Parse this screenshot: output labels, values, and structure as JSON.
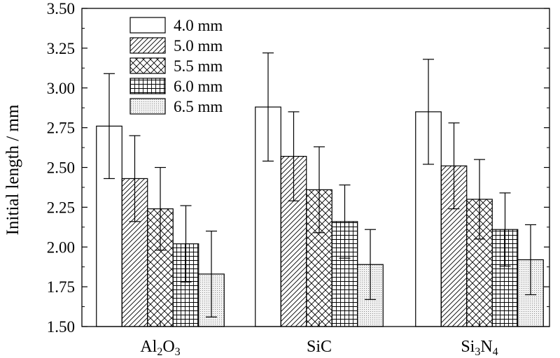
{
  "chart_data": {
    "type": "bar",
    "title": "",
    "xlabel": "",
    "ylabel": "Initial length / mm",
    "ylim": [
      1.5,
      3.5
    ],
    "yticks": [
      "1.50",
      "1.75",
      "2.00",
      "2.25",
      "2.50",
      "2.75",
      "3.00",
      "3.25",
      "3.50"
    ],
    "categories": [
      {
        "base": "Al",
        "sub1": "2",
        "mid": "O",
        "sub2": "3"
      },
      {
        "base": "SiC",
        "sub1": "",
        "mid": "",
        "sub2": ""
      },
      {
        "base": "Si",
        "sub1": "3",
        "mid": "N",
        "sub2": "4"
      }
    ],
    "grid": false,
    "legend_position": "top-left",
    "series": [
      {
        "name": "4.0 mm",
        "pattern": "none",
        "values": [
          2.76,
          2.88,
          2.85
        ],
        "err_low": [
          2.43,
          2.54,
          2.52
        ],
        "err_high": [
          3.09,
          3.22,
          3.18
        ]
      },
      {
        "name": "5.0 mm",
        "pattern": "diagonal",
        "values": [
          2.43,
          2.57,
          2.51
        ],
        "err_low": [
          2.16,
          2.29,
          2.24
        ],
        "err_high": [
          2.7,
          2.85,
          2.78
        ]
      },
      {
        "name": "5.5 mm",
        "pattern": "crosshatch",
        "values": [
          2.24,
          2.36,
          2.3
        ],
        "err_low": [
          1.98,
          2.09,
          2.05
        ],
        "err_high": [
          2.5,
          2.63,
          2.55
        ]
      },
      {
        "name": "6.0 mm",
        "pattern": "grid",
        "values": [
          2.02,
          2.16,
          2.11
        ],
        "err_low": [
          1.78,
          1.93,
          1.88
        ],
        "err_high": [
          2.26,
          2.39,
          2.34
        ]
      },
      {
        "name": "6.5 mm",
        "pattern": "dots",
        "values": [
          1.83,
          1.89,
          1.92
        ],
        "err_low": [
          1.56,
          1.67,
          1.7
        ],
        "err_high": [
          2.1,
          2.11,
          2.14
        ]
      }
    ]
  }
}
